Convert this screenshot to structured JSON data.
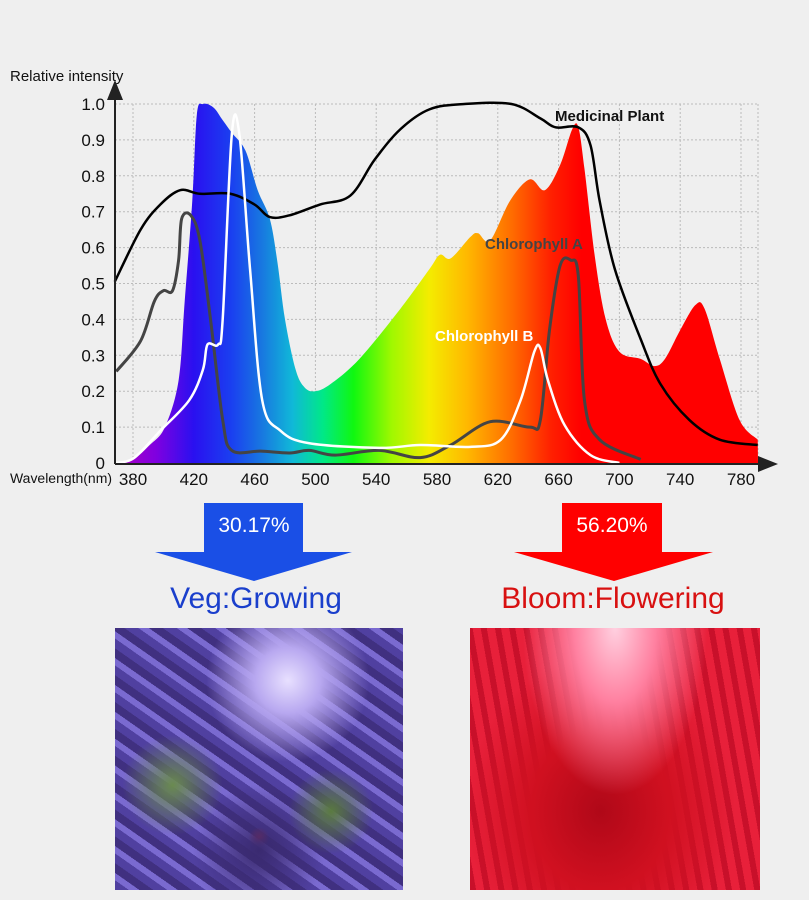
{
  "chart_data": {
    "type": "area",
    "ylabel": "Relative intensity",
    "xlabel": "Wavelength(nm)",
    "xlim": [
      368,
      791
    ],
    "ylim": [
      0,
      1.0
    ],
    "x_ticks": [
      380,
      420,
      460,
      500,
      540,
      580,
      620,
      660,
      700,
      740,
      780
    ],
    "y_ticks": [
      "0",
      "0.1",
      "0.2",
      "0.3",
      "0.4",
      "0.5",
      "0.6",
      "0.7",
      "0.8",
      "0.9",
      "1.0"
    ],
    "grid": true,
    "series": [
      {
        "kind": "spectrum-fill",
        "color": "rainbow",
        "points": [
          [
            369,
            0
          ],
          [
            380,
            0.01
          ],
          [
            391,
            0.05
          ],
          [
            401,
            0.1
          ],
          [
            410,
            0.23
          ],
          [
            414,
            0.45
          ],
          [
            419,
            0.73
          ],
          [
            422,
            0.97
          ],
          [
            426,
            1.0
          ],
          [
            433,
            0.99
          ],
          [
            439,
            0.955
          ],
          [
            445,
            0.92
          ],
          [
            454,
            0.87
          ],
          [
            462,
            0.76
          ],
          [
            470,
            0.68
          ],
          [
            475,
            0.56
          ],
          [
            480,
            0.4
          ],
          [
            487,
            0.26
          ],
          [
            493,
            0.21
          ],
          [
            500,
            0.2
          ],
          [
            510,
            0.22
          ],
          [
            529,
            0.29
          ],
          [
            556,
            0.43
          ],
          [
            575,
            0.54
          ],
          [
            582,
            0.58
          ],
          [
            589,
            0.57
          ],
          [
            602,
            0.63
          ],
          [
            607,
            0.64
          ],
          [
            615,
            0.62
          ],
          [
            628,
            0.73
          ],
          [
            641,
            0.79
          ],
          [
            651,
            0.76
          ],
          [
            661,
            0.83
          ],
          [
            669,
            0.93
          ],
          [
            673,
            0.935
          ],
          [
            677,
            0.82
          ],
          [
            684,
            0.57
          ],
          [
            691,
            0.4
          ],
          [
            700,
            0.31
          ],
          [
            714,
            0.29
          ],
          [
            723,
            0.27
          ],
          [
            730,
            0.29
          ],
          [
            740,
            0.37
          ],
          [
            750,
            0.44
          ],
          [
            756,
            0.43
          ],
          [
            766,
            0.29
          ],
          [
            779,
            0.12
          ],
          [
            791,
            0.065
          ]
        ]
      },
      {
        "name": "Medicinal Plant",
        "color": "#000000",
        "points": [
          [
            368,
            0.505
          ],
          [
            385,
            0.65
          ],
          [
            398,
            0.72
          ],
          [
            411,
            0.76
          ],
          [
            424,
            0.75
          ],
          [
            444,
            0.75
          ],
          [
            460,
            0.72
          ],
          [
            470,
            0.685
          ],
          [
            483,
            0.69
          ],
          [
            503,
            0.72
          ],
          [
            523,
            0.745
          ],
          [
            539,
            0.845
          ],
          [
            556,
            0.93
          ],
          [
            575,
            0.985
          ],
          [
            598,
            1.0
          ],
          [
            629,
            1.0
          ],
          [
            648,
            0.96
          ],
          [
            658,
            0.935
          ],
          [
            673,
            0.935
          ],
          [
            681,
            0.885
          ],
          [
            687,
            0.73
          ],
          [
            697,
            0.54
          ],
          [
            714,
            0.345
          ],
          [
            727,
            0.22
          ],
          [
            746,
            0.12
          ],
          [
            766,
            0.065
          ],
          [
            791,
            0.05
          ]
        ]
      },
      {
        "name": "Chlorophyll A",
        "color": "#444444",
        "points": [
          [
            369,
            0.255
          ],
          [
            385,
            0.34
          ],
          [
            394,
            0.45
          ],
          [
            400,
            0.48
          ],
          [
            406,
            0.48
          ],
          [
            410,
            0.565
          ],
          [
            412,
            0.68
          ],
          [
            418,
            0.69
          ],
          [
            424,
            0.62
          ],
          [
            431,
            0.4
          ],
          [
            439,
            0.12
          ],
          [
            445,
            0.035
          ],
          [
            464,
            0.033
          ],
          [
            483,
            0.028
          ],
          [
            496,
            0.035
          ],
          [
            513,
            0.022
          ],
          [
            542,
            0.035
          ],
          [
            569,
            0.015
          ],
          [
            589,
            0.05
          ],
          [
            615,
            0.115
          ],
          [
            641,
            0.1
          ],
          [
            648,
            0.12
          ],
          [
            654,
            0.37
          ],
          [
            661,
            0.55
          ],
          [
            668,
            0.565
          ],
          [
            673,
            0.52
          ],
          [
            677,
            0.175
          ],
          [
            687,
            0.065
          ],
          [
            714,
            0.01
          ]
        ]
      },
      {
        "name": "Chlorophyll B",
        "color": "#ffffff",
        "points": [
          [
            369,
            0
          ],
          [
            381,
            0.015
          ],
          [
            398,
            0.09
          ],
          [
            417,
            0.175
          ],
          [
            426,
            0.26
          ],
          [
            429,
            0.33
          ],
          [
            436,
            0.33
          ],
          [
            439,
            0.4
          ],
          [
            445,
            0.915
          ],
          [
            450,
            0.915
          ],
          [
            457,
            0.54
          ],
          [
            465,
            0.175
          ],
          [
            477,
            0.09
          ],
          [
            496,
            0.055
          ],
          [
            542,
            0.042
          ],
          [
            569,
            0.05
          ],
          [
            602,
            0.045
          ],
          [
            622,
            0.065
          ],
          [
            635,
            0.175
          ],
          [
            644,
            0.31
          ],
          [
            648,
            0.32
          ],
          [
            653,
            0.23
          ],
          [
            664,
            0.105
          ],
          [
            681,
            0.022
          ],
          [
            700,
            0
          ]
        ]
      }
    ]
  },
  "veg": {
    "percent": "30.17%",
    "label": "Veg:Growing",
    "color": "#1a4fe6",
    "text_color": "#1a3fcc"
  },
  "bloom": {
    "percent": "56.20%",
    "label": "Bloom:Flowering",
    "color": "#ff0000",
    "text_color": "#d81010"
  }
}
